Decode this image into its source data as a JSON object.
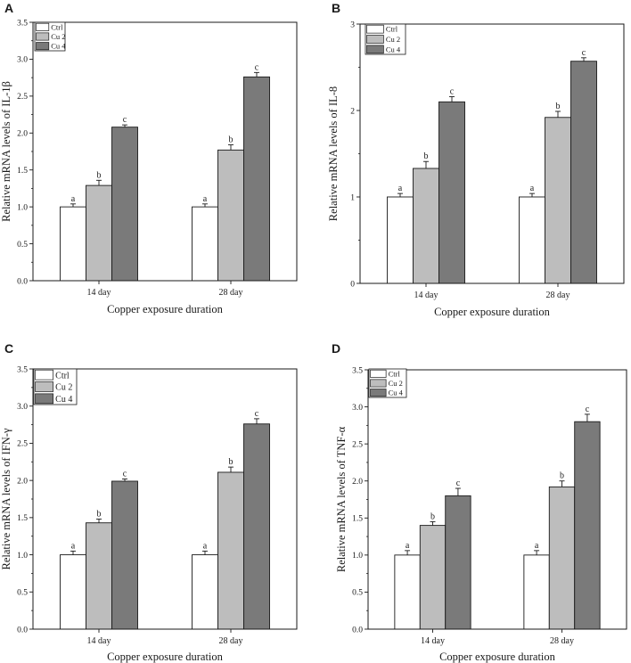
{
  "figure": {
    "panels": [
      "A",
      "B",
      "C",
      "D"
    ]
  },
  "chart_data": [
    {
      "panel": "A",
      "type": "bar",
      "categories": [
        "14 day",
        "28 day"
      ],
      "series": [
        {
          "name": "Ctrl",
          "color": "#ffffff",
          "values": [
            1.0,
            1.0
          ],
          "errors": [
            0.04,
            0.04
          ],
          "labels": [
            "a",
            "a"
          ]
        },
        {
          "name": "Cu 2",
          "color": "#bdbdbd",
          "values": [
            1.29,
            1.77
          ],
          "errors": [
            0.07,
            0.07
          ],
          "labels": [
            "b",
            "b"
          ]
        },
        {
          "name": "Cu 4",
          "color": "#7a7a7a",
          "values": [
            2.08,
            2.76
          ],
          "errors": [
            0.03,
            0.06
          ],
          "labels": [
            "c",
            "c"
          ]
        }
      ],
      "ylabel": "Relative mRNA levels of IL-1β",
      "xlabel": "Copper exposure duration",
      "ylim": [
        0,
        3.5
      ],
      "yticks": [
        "0.0",
        "0.5",
        "1.0",
        "1.5",
        "2.0",
        "2.5",
        "3.0",
        "3.5"
      ]
    },
    {
      "panel": "B",
      "type": "bar",
      "categories": [
        "14 day",
        "28 day"
      ],
      "series": [
        {
          "name": "Ctrl",
          "color": "#ffffff",
          "values": [
            1.0,
            1.0
          ],
          "errors": [
            0.04,
            0.04
          ],
          "labels": [
            "a",
            "a"
          ]
        },
        {
          "name": "Cu 2",
          "color": "#bdbdbd",
          "values": [
            1.33,
            1.92
          ],
          "errors": [
            0.08,
            0.07
          ],
          "labels": [
            "b",
            "b"
          ]
        },
        {
          "name": "Cu 4",
          "color": "#7a7a7a",
          "values": [
            2.1,
            2.57
          ],
          "errors": [
            0.06,
            0.04
          ],
          "labels": [
            "c",
            "c"
          ]
        }
      ],
      "ylabel": "Relative mRNA levels of IL-8",
      "xlabel": "Copper exposure duration",
      "ylim": [
        0,
        3
      ],
      "yticks": [
        "0",
        "1",
        "2",
        "3"
      ]
    },
    {
      "panel": "C",
      "type": "bar",
      "categories": [
        "14 day",
        "28 day"
      ],
      "series": [
        {
          "name": "Ctrl",
          "color": "#ffffff",
          "values": [
            1.0,
            1.0
          ],
          "errors": [
            0.05,
            0.05
          ],
          "labels": [
            "a",
            "a"
          ]
        },
        {
          "name": "Cu 2",
          "color": "#bdbdbd",
          "values": [
            1.43,
            2.11
          ],
          "errors": [
            0.05,
            0.07
          ],
          "labels": [
            "b",
            "b"
          ]
        },
        {
          "name": "Cu 4",
          "color": "#7a7a7a",
          "values": [
            1.99,
            2.76
          ],
          "errors": [
            0.03,
            0.07
          ],
          "labels": [
            "c",
            "c"
          ]
        }
      ],
      "ylabel": "Relative mRNA levels of IFN-γ",
      "xlabel": "Copper exposure duration",
      "ylim": [
        0,
        3.5
      ],
      "yticks": [
        "0.0",
        "0.5",
        "1.0",
        "1.5",
        "2.0",
        "2.5",
        "3.0",
        "3.5"
      ]
    },
    {
      "panel": "D",
      "type": "bar",
      "categories": [
        "14 day",
        "28 day"
      ],
      "series": [
        {
          "name": "Ctrl",
          "color": "#ffffff",
          "values": [
            1.0,
            1.0
          ],
          "errors": [
            0.06,
            0.06
          ],
          "labels": [
            "a",
            "a"
          ]
        },
        {
          "name": "Cu 2",
          "color": "#bdbdbd",
          "values": [
            1.4,
            1.92
          ],
          "errors": [
            0.05,
            0.08
          ],
          "labels": [
            "b",
            "b"
          ]
        },
        {
          "name": "Cu 4",
          "color": "#7a7a7a",
          "values": [
            1.8,
            2.8
          ],
          "errors": [
            0.1,
            0.1
          ],
          "labels": [
            "c",
            "c"
          ]
        }
      ],
      "ylabel": "Relative mRNA levels of TNF-α",
      "xlabel": "Copper exposure duration",
      "ylim": [
        0,
        3.5
      ],
      "yticks": [
        "0.0",
        "0.5",
        "1.0",
        "1.5",
        "2.0",
        "2.5",
        "3.0",
        "3.5"
      ]
    }
  ]
}
